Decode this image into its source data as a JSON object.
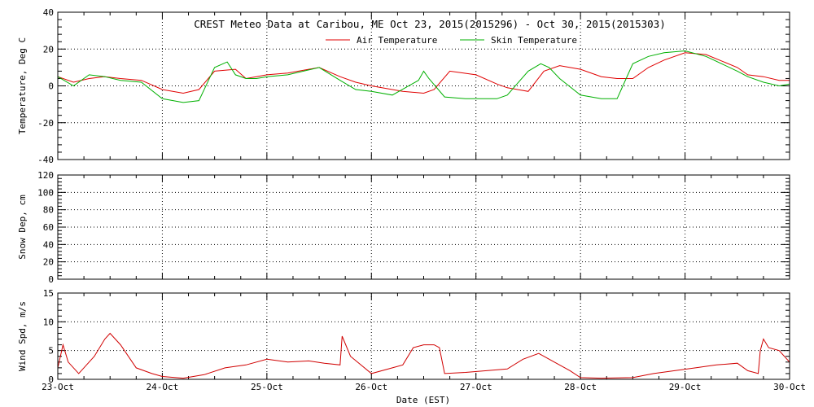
{
  "title": "CREST Meteo Data at Caribou, ME   Oct 23, 2015(2015296) - Oct 30, 2015(2015303)",
  "xlabel": "Date (EST)",
  "colors": {
    "air": "#e00000",
    "skin": "#00b000",
    "wind": "#d00000",
    "axis": "#000000"
  },
  "chart_data": [
    {
      "type": "line",
      "ylabel": "Temperature, Deg C",
      "ylim": [
        -40,
        40
      ],
      "yticks": [
        -40,
        -20,
        0,
        20,
        40
      ],
      "x_dates": [
        "23-Oct",
        "24-Oct",
        "25-Oct",
        "26-Oct",
        "27-Oct",
        "28-Oct",
        "29-Oct",
        "30-Oct"
      ],
      "grid": true,
      "legend": "top-center",
      "series": [
        {
          "name": "Air Temperature",
          "color": "#e00000",
          "x": [
            0,
            0.15,
            0.3,
            0.45,
            0.6,
            0.8,
            1.0,
            1.2,
            1.35,
            1.5,
            1.7,
            1.8,
            1.9,
            2.0,
            2.2,
            2.5,
            2.7,
            2.85,
            3.0,
            3.3,
            3.5,
            3.6,
            3.75,
            4.0,
            4.2,
            4.3,
            4.5,
            4.65,
            4.8,
            5.0,
            5.2,
            5.35,
            5.5,
            5.65,
            5.8,
            6.0,
            6.2,
            6.5,
            6.6,
            6.75,
            6.9,
            7.0
          ],
          "y": [
            5,
            2,
            4,
            5,
            4,
            3,
            -2,
            -4,
            -2,
            8,
            9,
            4,
            5,
            6,
            7,
            10,
            5,
            2,
            0,
            -3,
            -4,
            -2,
            8,
            6,
            1,
            -1,
            -3,
            8,
            11,
            9,
            5,
            4,
            4,
            10,
            14,
            18,
            17,
            10,
            6,
            5,
            3,
            3
          ]
        },
        {
          "name": "Skin Temperature",
          "color": "#00b000",
          "x": [
            0,
            0.15,
            0.3,
            0.45,
            0.6,
            0.8,
            1.0,
            1.2,
            1.35,
            1.5,
            1.62,
            1.7,
            1.8,
            1.9,
            2.0,
            2.2,
            2.5,
            2.7,
            2.85,
            3.0,
            3.2,
            3.45,
            3.5,
            3.55,
            3.7,
            3.9,
            4.2,
            4.3,
            4.5,
            4.62,
            4.7,
            4.8,
            5.0,
            5.2,
            5.35,
            5.5,
            5.65,
            5.8,
            6.0,
            6.2,
            6.5,
            6.6,
            6.75,
            6.9,
            7.0
          ],
          "y": [
            5,
            0,
            6,
            5,
            3,
            2,
            -7,
            -9,
            -8,
            10,
            13,
            6,
            4,
            4,
            5,
            6,
            10,
            3,
            -2,
            -3,
            -5,
            3,
            8,
            4,
            -6,
            -7,
            -7,
            -5,
            8,
            12,
            10,
            4,
            -5,
            -7,
            -7,
            12,
            16,
            18,
            19,
            16,
            8,
            5,
            2,
            0,
            1
          ]
        }
      ]
    },
    {
      "type": "line",
      "ylabel": "Snow Dep, cm",
      "ylim": [
        0,
        120
      ],
      "yticks": [
        0,
        20,
        40,
        60,
        80,
        100,
        120
      ],
      "x_dates": [
        "23-Oct",
        "24-Oct",
        "25-Oct",
        "26-Oct",
        "27-Oct",
        "28-Oct",
        "29-Oct",
        "30-Oct"
      ],
      "grid": true,
      "series": []
    },
    {
      "type": "line",
      "ylabel": "Wind Spd, m/s",
      "ylim": [
        0,
        15
      ],
      "yticks": [
        0,
        5,
        10,
        15
      ],
      "x_dates": [
        "23-Oct",
        "24-Oct",
        "25-Oct",
        "26-Oct",
        "27-Oct",
        "28-Oct",
        "29-Oct",
        "30-Oct"
      ],
      "grid": true,
      "series": [
        {
          "name": "",
          "color": "#d00000",
          "x": [
            0,
            0.05,
            0.1,
            0.2,
            0.35,
            0.45,
            0.5,
            0.6,
            0.75,
            0.9,
            1.0,
            1.2,
            1.4,
            1.6,
            1.8,
            2.0,
            2.2,
            2.4,
            2.55,
            2.7,
            2.72,
            2.8,
            3.0,
            3.2,
            3.3,
            3.4,
            3.5,
            3.6,
            3.65,
            3.7,
            3.9,
            4.1,
            4.3,
            4.45,
            4.6,
            4.75,
            4.9,
            5.0,
            5.2,
            5.5,
            5.7,
            5.9,
            6.1,
            6.3,
            6.5,
            6.6,
            6.7,
            6.72,
            6.75,
            6.8,
            6.9,
            7.0
          ],
          "y": [
            2,
            6,
            3,
            1,
            4,
            7,
            8,
            6,
            2,
            1,
            0.5,
            0.2,
            0.8,
            2,
            2.5,
            3.5,
            3,
            3.2,
            2.8,
            2.5,
            7.5,
            4,
            1,
            2,
            2.5,
            5.5,
            6,
            6,
            5.5,
            1,
            1.2,
            1.5,
            1.8,
            3.5,
            4.5,
            3,
            1.5,
            0.3,
            0.2,
            0.3,
            1,
            1.5,
            2,
            2.5,
            2.8,
            1.5,
            1,
            5,
            7,
            5.5,
            5,
            3
          ]
        }
      ]
    }
  ]
}
